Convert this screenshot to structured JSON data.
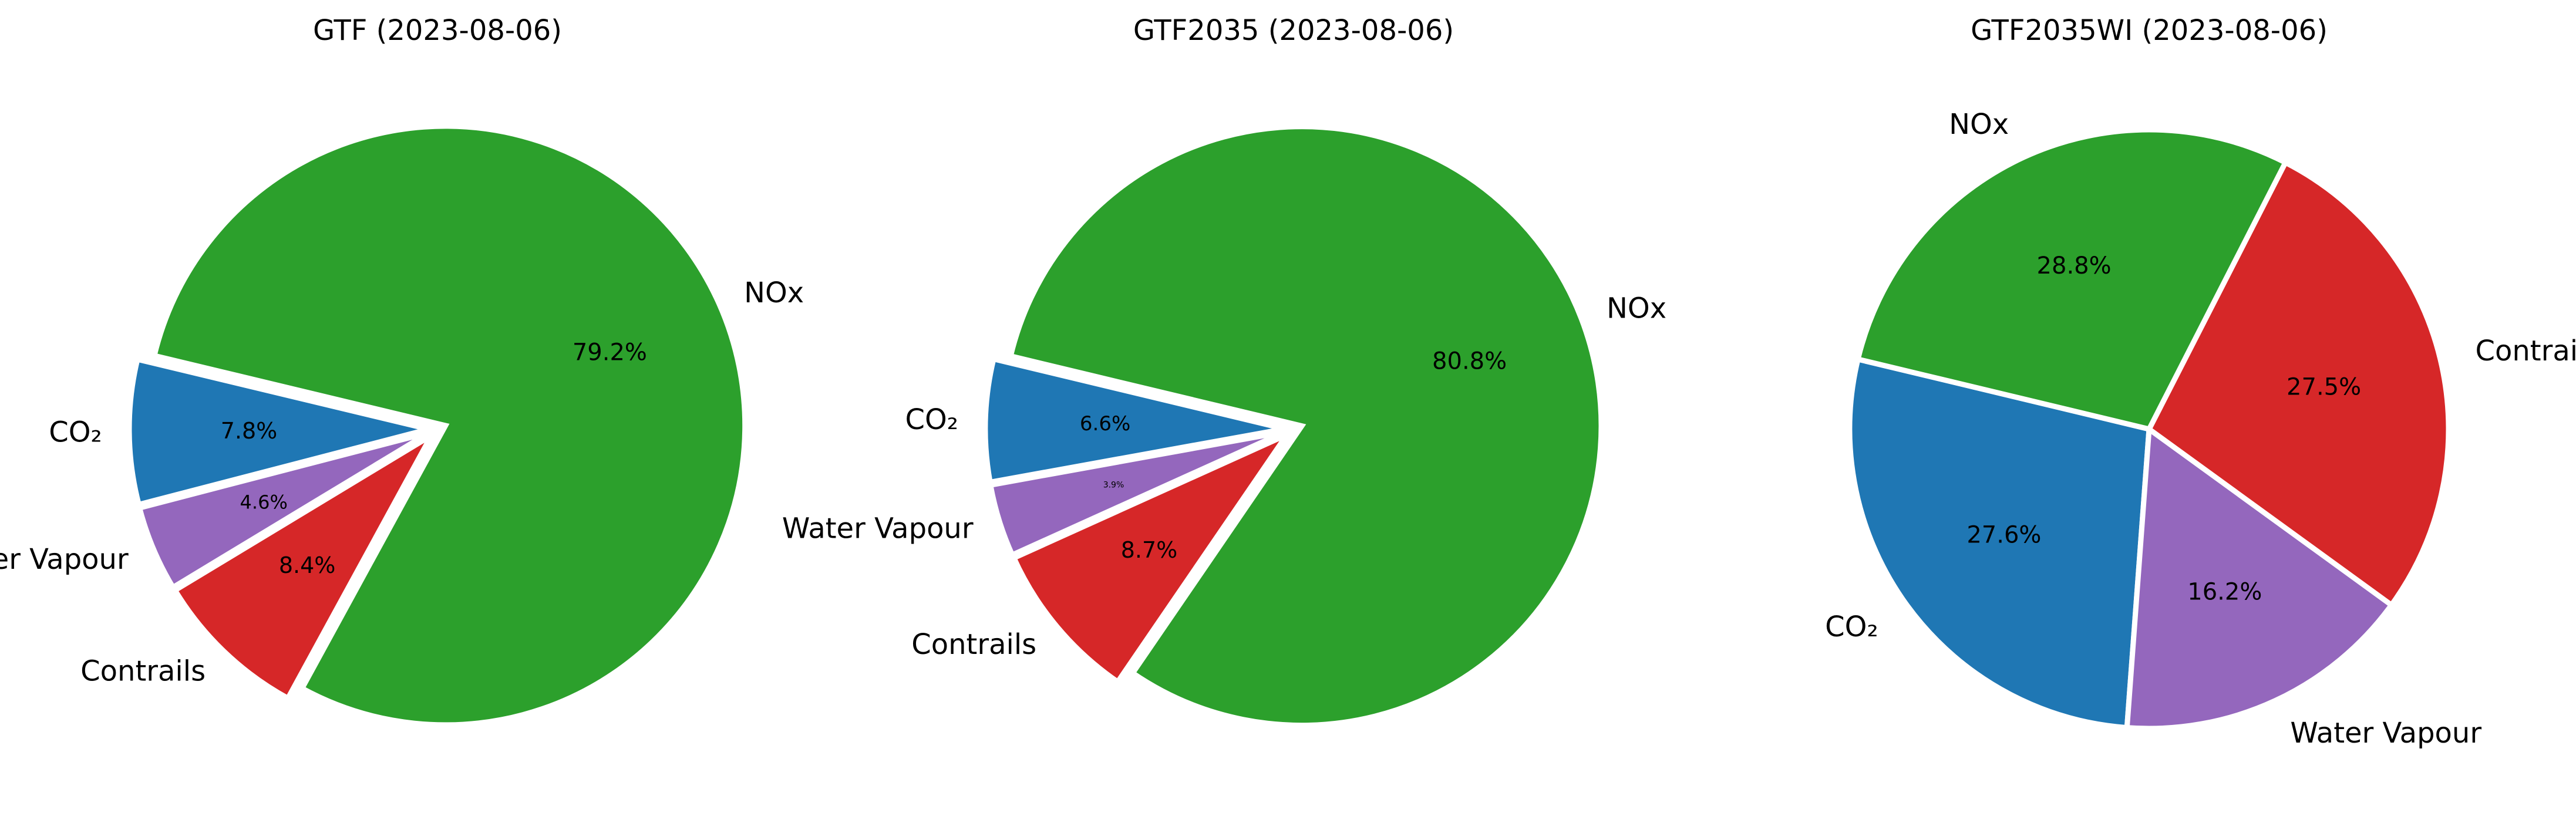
{
  "chart_data": [
    {
      "type": "pie",
      "title": "GTF (2023-08-06)",
      "labels": [
        "CO₂",
        "Water Vapour",
        "Contrails",
        "NOx"
      ],
      "values": [
        7.8,
        4.6,
        8.4,
        79.2
      ],
      "percent_labels": [
        "7.8%",
        "4.6%",
        "8.4%",
        "79.2%"
      ],
      "exploded": true
    },
    {
      "type": "pie",
      "title": "GTF2035 (2023-08-06)",
      "labels": [
        "CO₂",
        "Water Vapour",
        "Contrails",
        "NOx"
      ],
      "values": [
        6.6,
        3.9,
        8.7,
        80.8
      ],
      "percent_labels": [
        "6.6%",
        "3.9%",
        "8.7%",
        "80.8%"
      ],
      "exploded": true
    },
    {
      "type": "pie",
      "title": "GTF2035WI (2023-08-06)",
      "labels": [
        "CO₂",
        "Water Vapour",
        "Contrails",
        "NOx"
      ],
      "values": [
        27.6,
        16.2,
        27.5,
        28.8
      ],
      "percent_labels": [
        "27.6%",
        "16.2%",
        "27.5%",
        "28.8%"
      ],
      "exploded": false
    }
  ],
  "colors": {
    "CO₂": "#1f77b4",
    "Water Vapour": "#9467bd",
    "Contrails": "#d62728",
    "NOx": "#2ca02c"
  }
}
